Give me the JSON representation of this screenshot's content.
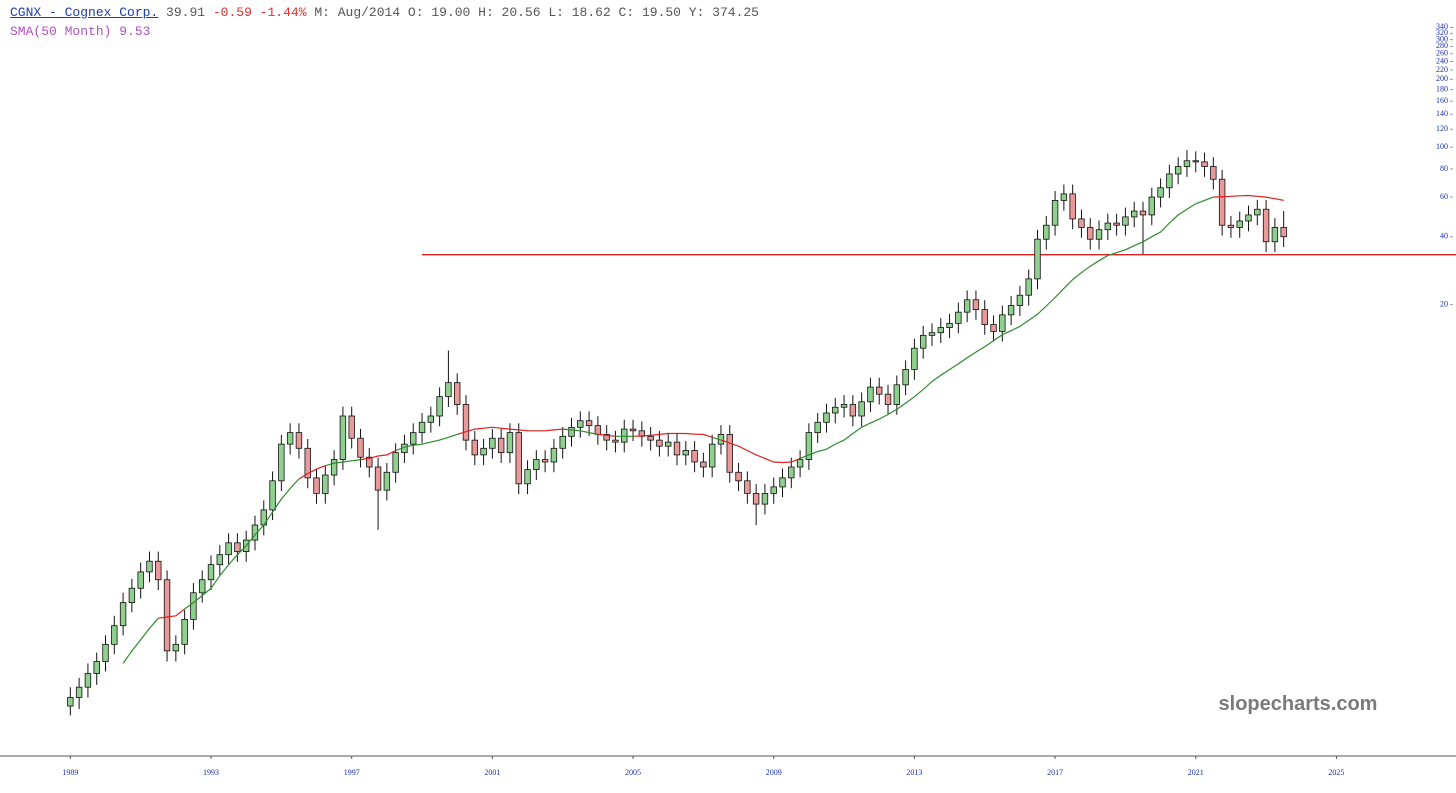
{
  "header": {
    "ticker": "CGNX - Cognex Corp.",
    "last": "39.91",
    "change": "-0.59 -1.44%",
    "ohlc": "M: Aug/2014 O: 19.00 H: 20.56 L: 18.62 C: 19.50 Y: 374.25"
  },
  "watermark": "slopecharts.com",
  "chart_data": {
    "type": "candlestick",
    "log_y": true,
    "up_color": "#8fd08f",
    "down_color": "#e89a9a",
    "xlim": [
      1987,
      2028.4
    ],
    "ylim": [
      0.2,
      450
    ],
    "xticks": [
      1989,
      1993,
      1997,
      2001,
      2005,
      2009,
      2013,
      2017,
      2021,
      2025
    ],
    "yticks": [
      20,
      40,
      60,
      80,
      100,
      120,
      140,
      160,
      180,
      200,
      220,
      240,
      260,
      280,
      300,
      320,
      340
    ],
    "x": [
      1989,
      1989.25,
      1989.5,
      1989.75,
      1990,
      1990.25,
      1990.5,
      1990.75,
      1991,
      1991.25,
      1991.5,
      1991.75,
      1992,
      1992.25,
      1992.5,
      1992.75,
      1993,
      1993.25,
      1993.5,
      1993.75,
      1994,
      1994.25,
      1994.5,
      1994.75,
      1995,
      1995.25,
      1995.5,
      1995.75,
      1996,
      1996.25,
      1996.5,
      1996.75,
      1997,
      1997.25,
      1997.5,
      1997.75,
      1998,
      1998.25,
      1998.5,
      1998.75,
      1999,
      1999.25,
      1999.5,
      1999.75,
      2000,
      2000.25,
      2000.5,
      2000.75,
      2001,
      2001.25,
      2001.5,
      2001.75,
      2002,
      2002.25,
      2002.5,
      2002.75,
      2003,
      2003.25,
      2003.5,
      2003.75,
      2004,
      2004.25,
      2004.5,
      2004.75,
      2005,
      2005.25,
      2005.5,
      2005.75,
      2006,
      2006.25,
      2006.5,
      2006.75,
      2007,
      2007.25,
      2007.5,
      2007.75,
      2008,
      2008.25,
      2008.5,
      2008.75,
      2009,
      2009.25,
      2009.5,
      2009.75,
      2010,
      2010.25,
      2010.5,
      2010.75,
      2011,
      2011.25,
      2011.5,
      2011.75,
      2012,
      2012.25,
      2012.5,
      2012.75,
      2013,
      2013.25,
      2013.5,
      2013.75,
      2014,
      2014.25,
      2014.5,
      2014.75,
      2015,
      2015.25,
      2015.5,
      2015.75,
      2016,
      2016.25,
      2016.5,
      2016.75,
      2017,
      2017.25,
      2017.5,
      2017.75,
      2018,
      2018.25,
      2018.5,
      2018.75,
      2019,
      2019.25,
      2019.5,
      2019.75,
      2020,
      2020.25,
      2020.5,
      2020.75,
      2021,
      2021.25,
      2021.5,
      2021.75,
      2022,
      2022.25,
      2022.5,
      2022.75,
      2023,
      2023.25,
      2023.5
    ],
    "open": [
      0.33,
      0.36,
      0.4,
      0.46,
      0.52,
      0.62,
      0.75,
      0.95,
      1.1,
      1.3,
      1.45,
      1.2,
      0.58,
      0.62,
      0.8,
      1.05,
      1.2,
      1.4,
      1.55,
      1.75,
      1.6,
      1.8,
      2.1,
      2.45,
      3.3,
      4.8,
      5.4,
      4.6,
      3.4,
      2.9,
      3.5,
      4.1,
      6.4,
      5.1,
      4.2,
      3.8,
      3.0,
      3.6,
      4.4,
      4.8,
      5.4,
      6.0,
      6.4,
      7.8,
      9.0,
      7.2,
      5.0,
      4.3,
      4.6,
      5.1,
      4.4,
      5.4,
      3.2,
      3.7,
      4.1,
      4.0,
      4.6,
      5.2,
      5.7,
      6.1,
      5.8,
      5.3,
      5.0,
      4.9,
      5.6,
      5.5,
      5.2,
      5.0,
      4.7,
      4.9,
      4.3,
      4.5,
      4.0,
      3.8,
      4.8,
      5.3,
      3.6,
      3.3,
      2.9,
      2.6,
      2.9,
      3.1,
      3.4,
      3.8,
      4.1,
      5.4,
      6.0,
      6.6,
      7.0,
      7.2,
      6.4,
      7.4,
      8.6,
      8.0,
      7.2,
      8.8,
      10.3,
      12.8,
      14.6,
      15.0,
      15.8,
      16.5,
      18.5,
      21.0,
      19.0,
      16.3,
      15.2,
      18.0,
      19.8,
      22,
      26,
      39,
      45,
      58,
      62,
      48,
      44,
      39,
      43,
      46,
      45,
      49,
      52,
      50,
      60,
      66,
      76,
      82,
      87,
      86,
      82,
      72,
      45,
      44,
      47,
      50,
      53,
      38,
      44
    ],
    "high": [
      0.4,
      0.44,
      0.51,
      0.57,
      0.68,
      0.83,
      1.05,
      1.21,
      1.43,
      1.6,
      1.6,
      1.32,
      0.68,
      0.88,
      1.16,
      1.32,
      1.54,
      1.71,
      1.93,
      1.93,
      1.98,
      2.31,
      2.7,
      3.63,
      5.28,
      5.94,
      5.94,
      5.06,
      3.74,
      3.85,
      4.51,
      7.04,
      7.04,
      5.61,
      4.62,
      4.18,
      3.96,
      4.84,
      5.28,
      5.94,
      6.6,
      7.04,
      8.58,
      12.5,
      9.9,
      7.92,
      5.5,
      5.06,
      5.61,
      5.61,
      5.94,
      5.94,
      4.07,
      4.51,
      4.51,
      5.06,
      5.72,
      6.27,
      6.71,
      6.71,
      6.38,
      5.83,
      5.5,
      6.16,
      6.16,
      6.05,
      5.72,
      5.5,
      5.39,
      5.39,
      4.95,
      4.95,
      4.4,
      5.28,
      5.83,
      5.83,
      3.96,
      3.63,
      3.19,
      3.19,
      3.41,
      3.74,
      4.18,
      4.51,
      5.94,
      6.6,
      7.26,
      7.7,
      7.92,
      7.92,
      8.14,
      9.46,
      9.46,
      8.8,
      9.68,
      11.3,
      14.1,
      16.1,
      16.5,
      17.4,
      18.2,
      20.4,
      23.1,
      23.1,
      20.9,
      17.9,
      19.8,
      21.8,
      24.2,
      28.6,
      42.9,
      49.5,
      63.8,
      68.2,
      68.2,
      52.8,
      48.4,
      47.3,
      50.6,
      50.6,
      53.9,
      57.2,
      57.2,
      66,
      72.6,
      83.6,
      90.2,
      97,
      95.7,
      94.6,
      90.2,
      79.2,
      49.5,
      51.7,
      55,
      58.3,
      58.3,
      48.4,
      52
    ],
    "low": [
      0.3,
      0.32,
      0.36,
      0.41,
      0.47,
      0.56,
      0.68,
      0.86,
      0.99,
      1.17,
      1.08,
      0.52,
      0.52,
      0.56,
      0.72,
      0.95,
      1.08,
      1.26,
      1.4,
      1.44,
      1.44,
      1.62,
      1.89,
      2.21,
      2.97,
      4.32,
      4.14,
      3.06,
      2.61,
      2.61,
      3.15,
      3.69,
      4.59,
      3.78,
      3.42,
      2.0,
      2.7,
      3.24,
      3.96,
      4.32,
      4.86,
      5.4,
      5.76,
      7.02,
      6.48,
      4.5,
      3.87,
      3.87,
      4.14,
      3.96,
      3.96,
      2.88,
      2.88,
      3.33,
      3.6,
      3.6,
      4.14,
      4.68,
      5.13,
      5.22,
      4.77,
      4.5,
      4.41,
      4.41,
      4.95,
      4.68,
      4.5,
      4.23,
      4.23,
      3.87,
      3.87,
      3.6,
      3.42,
      3.42,
      4.32,
      3.24,
      2.97,
      2.61,
      2.1,
      2.34,
      2.61,
      2.79,
      3.06,
      3.42,
      3.69,
      4.86,
      5.4,
      5.94,
      6.3,
      5.76,
      5.76,
      6.66,
      7.2,
      6.48,
      6.48,
      7.92,
      9.27,
      11.5,
      13.1,
      13.5,
      14.2,
      14.9,
      16.7,
      17.1,
      14.7,
      13.7,
      13.7,
      16.2,
      17.8,
      19.8,
      23.4,
      35.1,
      40.5,
      52.2,
      43.2,
      39.6,
      35.1,
      35.1,
      38.7,
      40.5,
      40.5,
      44.1,
      33.5,
      45,
      54,
      59.4,
      68.4,
      73.8,
      77.4,
      73.8,
      64.8,
      40.5,
      39.6,
      39.6,
      42.3,
      45,
      34.2,
      34.2,
      36
    ],
    "close": [
      0.36,
      0.4,
      0.46,
      0.52,
      0.62,
      0.75,
      0.95,
      1.1,
      1.3,
      1.45,
      1.2,
      0.58,
      0.62,
      0.8,
      1.05,
      1.2,
      1.4,
      1.55,
      1.75,
      1.6,
      1.8,
      2.1,
      2.45,
      3.3,
      4.8,
      5.4,
      4.6,
      3.4,
      2.9,
      3.5,
      4.1,
      6.4,
      5.1,
      4.2,
      3.8,
      3.0,
      3.6,
      4.4,
      4.8,
      5.4,
      6.0,
      6.4,
      7.8,
      9.0,
      7.2,
      5.0,
      4.3,
      4.6,
      5.1,
      4.4,
      5.4,
      3.2,
      3.7,
      4.1,
      4.0,
      4.6,
      5.2,
      5.7,
      6.1,
      5.8,
      5.3,
      5.0,
      4.9,
      5.6,
      5.5,
      5.2,
      5.0,
      4.7,
      4.9,
      4.3,
      4.5,
      4.0,
      3.8,
      4.8,
      5.3,
      3.6,
      3.3,
      2.9,
      2.6,
      2.9,
      3.1,
      3.4,
      3.8,
      4.1,
      5.4,
      6.0,
      6.6,
      7.0,
      7.2,
      6.4,
      7.4,
      8.6,
      8.0,
      7.2,
      8.8,
      10.3,
      12.8,
      14.6,
      15.0,
      15.8,
      16.5,
      18.5,
      21.0,
      19.0,
      16.3,
      15.2,
      18.0,
      19.8,
      22,
      26,
      39,
      45,
      58,
      62,
      48,
      44,
      39,
      43,
      46,
      45,
      49,
      52,
      50,
      60,
      66,
      76,
      82,
      87,
      86,
      82,
      72,
      45,
      44,
      47,
      50,
      53,
      38,
      44,
      40
    ],
    "sma": {
      "label": "SMA(50 Month) 9.53",
      "color_above": "#2e8b2e",
      "color_below": "#e02020",
      "values": [
        null,
        null,
        null,
        null,
        null,
        null,
        0.51,
        0.58,
        0.65,
        0.73,
        0.81,
        0.82,
        0.83,
        0.89,
        0.95,
        1.02,
        1.1,
        1.25,
        1.4,
        1.55,
        1.7,
        1.9,
        2.1,
        2.4,
        2.74,
        3.05,
        3.36,
        3.55,
        3.72,
        3.85,
        3.95,
        4.0,
        4.05,
        4.1,
        4.15,
        4.25,
        4.3,
        4.5,
        4.65,
        4.75,
        4.8,
        4.9,
        5.0,
        5.15,
        5.3,
        5.45,
        5.6,
        5.65,
        5.7,
        5.65,
        5.6,
        5.55,
        5.5,
        5.5,
        5.5,
        5.55,
        5.6,
        5.55,
        5.5,
        5.4,
        5.3,
        5.25,
        5.2,
        5.2,
        5.2,
        5.22,
        5.25,
        5.3,
        5.35,
        5.35,
        5.35,
        5.32,
        5.3,
        5.15,
        5.0,
        4.85,
        4.7,
        4.5,
        4.3,
        4.15,
        4.0,
        3.98,
        4.0,
        4.15,
        4.3,
        4.45,
        4.56,
        4.8,
        5.0,
        5.35,
        5.7,
        5.95,
        6.2,
        6.5,
        6.85,
        7.3,
        7.8,
        8.4,
        9.1,
        9.7,
        10.3,
        10.9,
        11.6,
        12.3,
        13.0,
        13.8,
        14.7,
        15.3,
        16.0,
        17.0,
        18.1,
        19.7,
        21.5,
        23.6,
        25.8,
        27.7,
        29.6,
        31.3,
        33,
        34,
        35,
        36.5,
        38,
        40,
        42,
        46,
        50,
        53,
        56,
        58,
        60,
        60.3,
        60.5,
        60.8,
        61,
        60.5,
        60,
        59,
        58
      ]
    },
    "hline": {
      "value": 33.3,
      "x_start": 1999,
      "color": "#e02020"
    }
  }
}
